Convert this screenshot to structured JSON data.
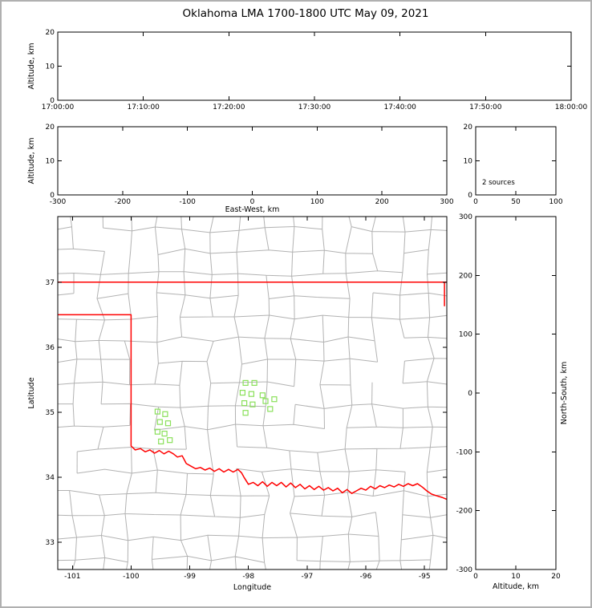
{
  "figure": {
    "title": "Oklahoma LMA 1700-1800 UTC May 09, 2021",
    "background": "#ffffff",
    "border_color": "#b0b0b0"
  },
  "colors": {
    "axis": "#000000",
    "text": "#000000",
    "county_border": "#b2b2b2",
    "state_border": "#ff0000",
    "source_marker": "#8ae05a"
  },
  "chart_data": [
    {
      "id": "time_altitude",
      "type": "scatter",
      "xlabel": "",
      "ylabel": "Altitude, km",
      "xlim": [
        61200,
        64800
      ],
      "ylim": [
        0,
        20
      ],
      "xticks": {
        "values": [
          61200,
          61800,
          62400,
          63000,
          63600,
          64200,
          64800
        ],
        "labels": [
          "17:00:00",
          "17:10:00",
          "17:20:00",
          "17:30:00",
          "17:40:00",
          "17:50:00",
          "18:00:00"
        ]
      },
      "yticks": {
        "values": [
          0,
          10,
          20
        ],
        "labels": [
          "0",
          "10",
          "20"
        ]
      },
      "points": []
    },
    {
      "id": "ew_altitude",
      "type": "scatter",
      "xlabel": "East-West, km",
      "ylabel": "Altitude, km",
      "xlim": [
        -300,
        300
      ],
      "ylim": [
        0,
        20
      ],
      "xticks": {
        "values": [
          -300,
          -200,
          -100,
          0,
          100,
          200,
          300
        ],
        "labels": [
          "-300",
          "-200",
          "-100",
          "0",
          "100",
          "200",
          "300"
        ]
      },
      "yticks": {
        "values": [
          0,
          10,
          20
        ],
        "labels": [
          "0",
          "10",
          "20"
        ]
      },
      "points": []
    },
    {
      "id": "alt_histogram",
      "type": "line",
      "xlabel": "",
      "ylabel": "",
      "annotation": "2 sources",
      "xlim": [
        0,
        100
      ],
      "ylim": [
        0,
        20
      ],
      "xticks": {
        "values": [
          0,
          50,
          100
        ],
        "labels": [
          "0",
          "50",
          "100"
        ]
      },
      "yticks": {
        "values": [
          0,
          10,
          20
        ],
        "labels": [
          "0",
          "10",
          "20"
        ]
      },
      "points": []
    },
    {
      "id": "plan_view_map",
      "type": "scatter",
      "xlabel": "Longitude",
      "ylabel": "Latitude",
      "xlim": [
        -101.25,
        -94.62
      ],
      "ylim": [
        32.58,
        38.01
      ],
      "xticks": {
        "values": [
          -101,
          -100,
          -99,
          -98,
          -97,
          -96,
          -95
        ],
        "labels": [
          "-101",
          "-100",
          "-99",
          "-98",
          "-97",
          "-96",
          "-95"
        ]
      },
      "yticks": {
        "values": [
          33,
          34,
          35,
          36,
          37
        ],
        "labels": [
          "33",
          "34",
          "35",
          "36",
          "37"
        ]
      },
      "marker": {
        "shape": "open-square",
        "size": 6
      },
      "points": [
        [
          -99.55,
          35.01
        ],
        [
          -99.42,
          34.97
        ],
        [
          -99.51,
          34.85
        ],
        [
          -99.37,
          34.83
        ],
        [
          -99.55,
          34.7
        ],
        [
          -99.43,
          34.67
        ],
        [
          -99.49,
          34.55
        ],
        [
          -99.34,
          34.57
        ],
        [
          -98.05,
          35.45
        ],
        [
          -97.9,
          35.45
        ],
        [
          -98.1,
          35.3
        ],
        [
          -97.95,
          35.28
        ],
        [
          -97.76,
          35.26
        ],
        [
          -98.07,
          35.14
        ],
        [
          -97.93,
          35.12
        ],
        [
          -98.05,
          34.99
        ],
        [
          -97.71,
          35.17
        ],
        [
          -97.56,
          35.2
        ],
        [
          -97.63,
          35.05
        ]
      ],
      "state_border_paths": [
        [
          [
            -101.25,
            37.0
          ],
          [
            -94.62,
            37.0
          ]
        ],
        [
          [
            -94.66,
            37.0
          ],
          [
            -94.66,
            36.63
          ]
        ],
        [
          [
            -101.25,
            36.5
          ],
          [
            -100.0,
            36.5
          ],
          [
            -100.0,
            34.48
          ],
          [
            -99.93,
            34.42
          ],
          [
            -99.84,
            34.44
          ],
          [
            -99.76,
            34.39
          ],
          [
            -99.68,
            34.42
          ],
          [
            -99.6,
            34.37
          ],
          [
            -99.52,
            34.41
          ],
          [
            -99.44,
            34.36
          ],
          [
            -99.36,
            34.4
          ],
          [
            -99.28,
            34.36
          ],
          [
            -99.21,
            34.31
          ],
          [
            -99.13,
            34.33
          ],
          [
            -99.06,
            34.21
          ],
          [
            -98.98,
            34.17
          ],
          [
            -98.9,
            34.13
          ],
          [
            -98.82,
            34.15
          ],
          [
            -98.74,
            34.11
          ],
          [
            -98.66,
            34.14
          ],
          [
            -98.58,
            34.09
          ],
          [
            -98.5,
            34.13
          ],
          [
            -98.42,
            34.08
          ],
          [
            -98.34,
            34.12
          ],
          [
            -98.26,
            34.08
          ],
          [
            -98.18,
            34.12
          ],
          [
            -98.12,
            34.07
          ],
          [
            -98.07,
            33.99
          ],
          [
            -98.0,
            33.89
          ],
          [
            -97.92,
            33.92
          ],
          [
            -97.84,
            33.87
          ],
          [
            -97.76,
            33.93
          ],
          [
            -97.68,
            33.86
          ],
          [
            -97.6,
            33.92
          ],
          [
            -97.52,
            33.87
          ],
          [
            -97.44,
            33.92
          ],
          [
            -97.36,
            33.85
          ],
          [
            -97.28,
            33.91
          ],
          [
            -97.2,
            33.84
          ],
          [
            -97.12,
            33.89
          ],
          [
            -97.04,
            33.82
          ],
          [
            -96.96,
            33.87
          ],
          [
            -96.88,
            33.81
          ],
          [
            -96.8,
            33.86
          ],
          [
            -96.72,
            33.8
          ],
          [
            -96.64,
            33.84
          ],
          [
            -96.56,
            33.79
          ],
          [
            -96.48,
            33.83
          ],
          [
            -96.4,
            33.76
          ],
          [
            -96.32,
            33.81
          ],
          [
            -96.24,
            33.75
          ],
          [
            -96.16,
            33.79
          ],
          [
            -96.08,
            33.83
          ],
          [
            -96.0,
            33.8
          ],
          [
            -95.92,
            33.86
          ],
          [
            -95.84,
            33.82
          ],
          [
            -95.76,
            33.87
          ],
          [
            -95.68,
            33.84
          ],
          [
            -95.6,
            33.88
          ],
          [
            -95.52,
            33.85
          ],
          [
            -95.44,
            33.89
          ],
          [
            -95.36,
            33.86
          ],
          [
            -95.28,
            33.9
          ],
          [
            -95.2,
            33.87
          ],
          [
            -95.12,
            33.9
          ],
          [
            -95.04,
            33.85
          ],
          [
            -94.96,
            33.79
          ],
          [
            -94.88,
            33.74
          ],
          [
            -94.78,
            33.71
          ],
          [
            -94.7,
            33.69
          ],
          [
            -94.62,
            33.66
          ]
        ]
      ]
    },
    {
      "id": "ns_altitude",
      "type": "scatter",
      "xlabel": "Altitude, km",
      "ylabel": "North-South, km",
      "xlim": [
        0,
        20
      ],
      "ylim": [
        -300,
        300
      ],
      "xticks": {
        "values": [
          0,
          10,
          20
        ],
        "labels": [
          "0",
          "10",
          "20"
        ]
      },
      "yticks": {
        "values": [
          -300,
          -200,
          -100,
          0,
          100,
          200,
          300
        ],
        "labels": [
          "-300",
          "-200",
          "-100",
          "0",
          "100",
          "200",
          "300"
        ]
      },
      "points": []
    }
  ]
}
